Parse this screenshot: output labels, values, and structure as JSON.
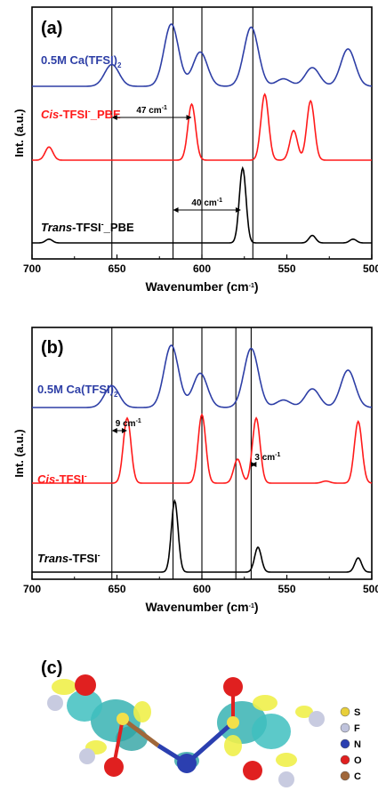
{
  "chart_data": [
    {
      "type": "line",
      "panel_label": "(a)",
      "xlabel": "Wavenumber (cm-1)",
      "ylabel": "Int. (a.u.)",
      "xlim": [
        700,
        500
      ],
      "x_ticks": [
        "700",
        "650",
        "600",
        "550",
        "500"
      ],
      "vertical_lines_x": [
        653,
        617,
        600,
        570
      ],
      "annotations": [
        {
          "text": "47 cm-1",
          "from_x": 653,
          "to_x": 606
        },
        {
          "text": "40 cm-1",
          "from_x": 617,
          "to_x": 577
        }
      ],
      "series": [
        {
          "name": "0.5M Ca(TFSI)2",
          "color": "#2e3fa6",
          "peaks": [
            [
              653,
              0.35
            ],
            [
              618,
              1.0
            ],
            [
              601,
              0.55
            ],
            [
              571,
              0.95
            ],
            [
              552,
              0.12
            ],
            [
              535,
              0.3
            ],
            [
              514,
              0.6
            ]
          ]
        },
        {
          "name": "Cis-TFSI-_PBE",
          "color": "#ff1a1a",
          "peaks": [
            [
              690,
              0.2
            ],
            [
              606,
              0.85
            ],
            [
              563,
              1.0
            ],
            [
              546,
              0.45
            ],
            [
              536,
              0.9
            ]
          ]
        },
        {
          "name": "Trans-TFSI-_PBE",
          "color": "#000000",
          "peaks": [
            [
              690,
              0.05
            ],
            [
              576,
              1.0
            ],
            [
              535,
              0.1
            ],
            [
              511,
              0.05
            ]
          ]
        }
      ]
    },
    {
      "type": "line",
      "panel_label": "(b)",
      "xlabel": "Wavenumber (cm-1)",
      "ylabel": "Int. (a.u.)",
      "xlim": [
        700,
        500
      ],
      "x_ticks": [
        "700",
        "650",
        "600",
        "550",
        "500"
      ],
      "vertical_lines_x": [
        653,
        617,
        600,
        580,
        571
      ],
      "annotations": [
        {
          "text": "9 cm-1",
          "from_x": 653,
          "to_x": 644
        },
        {
          "text": "3 cm-1",
          "from_x": 571,
          "to_x": 568
        }
      ],
      "series": [
        {
          "name": "0.5M Ca(TFSI)2",
          "color": "#2e3fa6",
          "peaks": [
            [
              653,
              0.35
            ],
            [
              618,
              1.0
            ],
            [
              601,
              0.55
            ],
            [
              571,
              0.95
            ],
            [
              552,
              0.12
            ],
            [
              535,
              0.3
            ],
            [
              514,
              0.6
            ]
          ]
        },
        {
          "name": "Cis-TFSI-",
          "color": "#ff1a1a",
          "peaks": [
            [
              644,
              0.95
            ],
            [
              600,
              1.0
            ],
            [
              579,
              0.35
            ],
            [
              568,
              0.95
            ],
            [
              527,
              0.03
            ],
            [
              508,
              0.9
            ]
          ]
        },
        {
          "name": "Trans-TFSI-",
          "color": "#000000",
          "peaks": [
            [
              616,
              1.0
            ],
            [
              567,
              0.35
            ],
            [
              508,
              0.2
            ]
          ]
        }
      ]
    }
  ],
  "panel_c": {
    "label": "(c)",
    "legend": [
      "S",
      "F",
      "N",
      "O",
      "C"
    ],
    "legend_colors": [
      "#e8cf3a",
      "#bfc3dc",
      "#2b3fb0",
      "#e02020",
      "#a0673a"
    ]
  }
}
